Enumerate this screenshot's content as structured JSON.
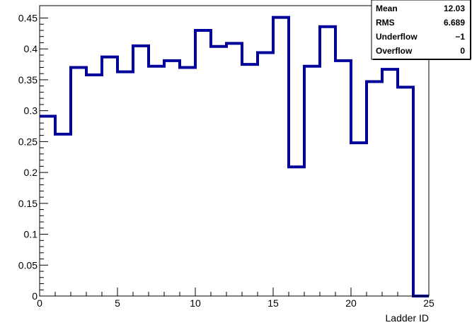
{
  "chart_data": {
    "type": "histogram",
    "title": "",
    "xlabel": "Ladder ID",
    "ylabel": "",
    "xlim": [
      0,
      25
    ],
    "ylim": [
      0,
      0.47
    ],
    "bin_edges": [
      0,
      1,
      2,
      3,
      4,
      5,
      6,
      7,
      8,
      9,
      10,
      11,
      12,
      13,
      14,
      15,
      16,
      17,
      18,
      19,
      20,
      21,
      22,
      23,
      24,
      25
    ],
    "values": [
      0.291,
      0.262,
      0.37,
      0.358,
      0.387,
      0.363,
      0.405,
      0.372,
      0.381,
      0.37,
      0.43,
      0.404,
      0.409,
      0.375,
      0.394,
      0.451,
      0.209,
      0.372,
      0.436,
      0.381,
      0.248,
      0.347,
      0.367,
      0.338,
      0.0
    ],
    "x_ticks": [
      "0",
      "5",
      "10",
      "15",
      "20",
      "25"
    ],
    "y_ticks": [
      "0",
      "0.05",
      "0.1",
      "0.15",
      "0.2",
      "0.25",
      "0.3",
      "0.35",
      "0.4",
      "0.45"
    ],
    "line_color": "#000099",
    "stats_box": {
      "placement": "top-right",
      "entries": [
        {
          "label": "Mean",
          "value": "12.03"
        },
        {
          "label": "RMS",
          "value": "6.689"
        },
        {
          "label": "Underflow",
          "value": "−1"
        },
        {
          "label": "Overflow",
          "value": "0"
        }
      ]
    }
  }
}
